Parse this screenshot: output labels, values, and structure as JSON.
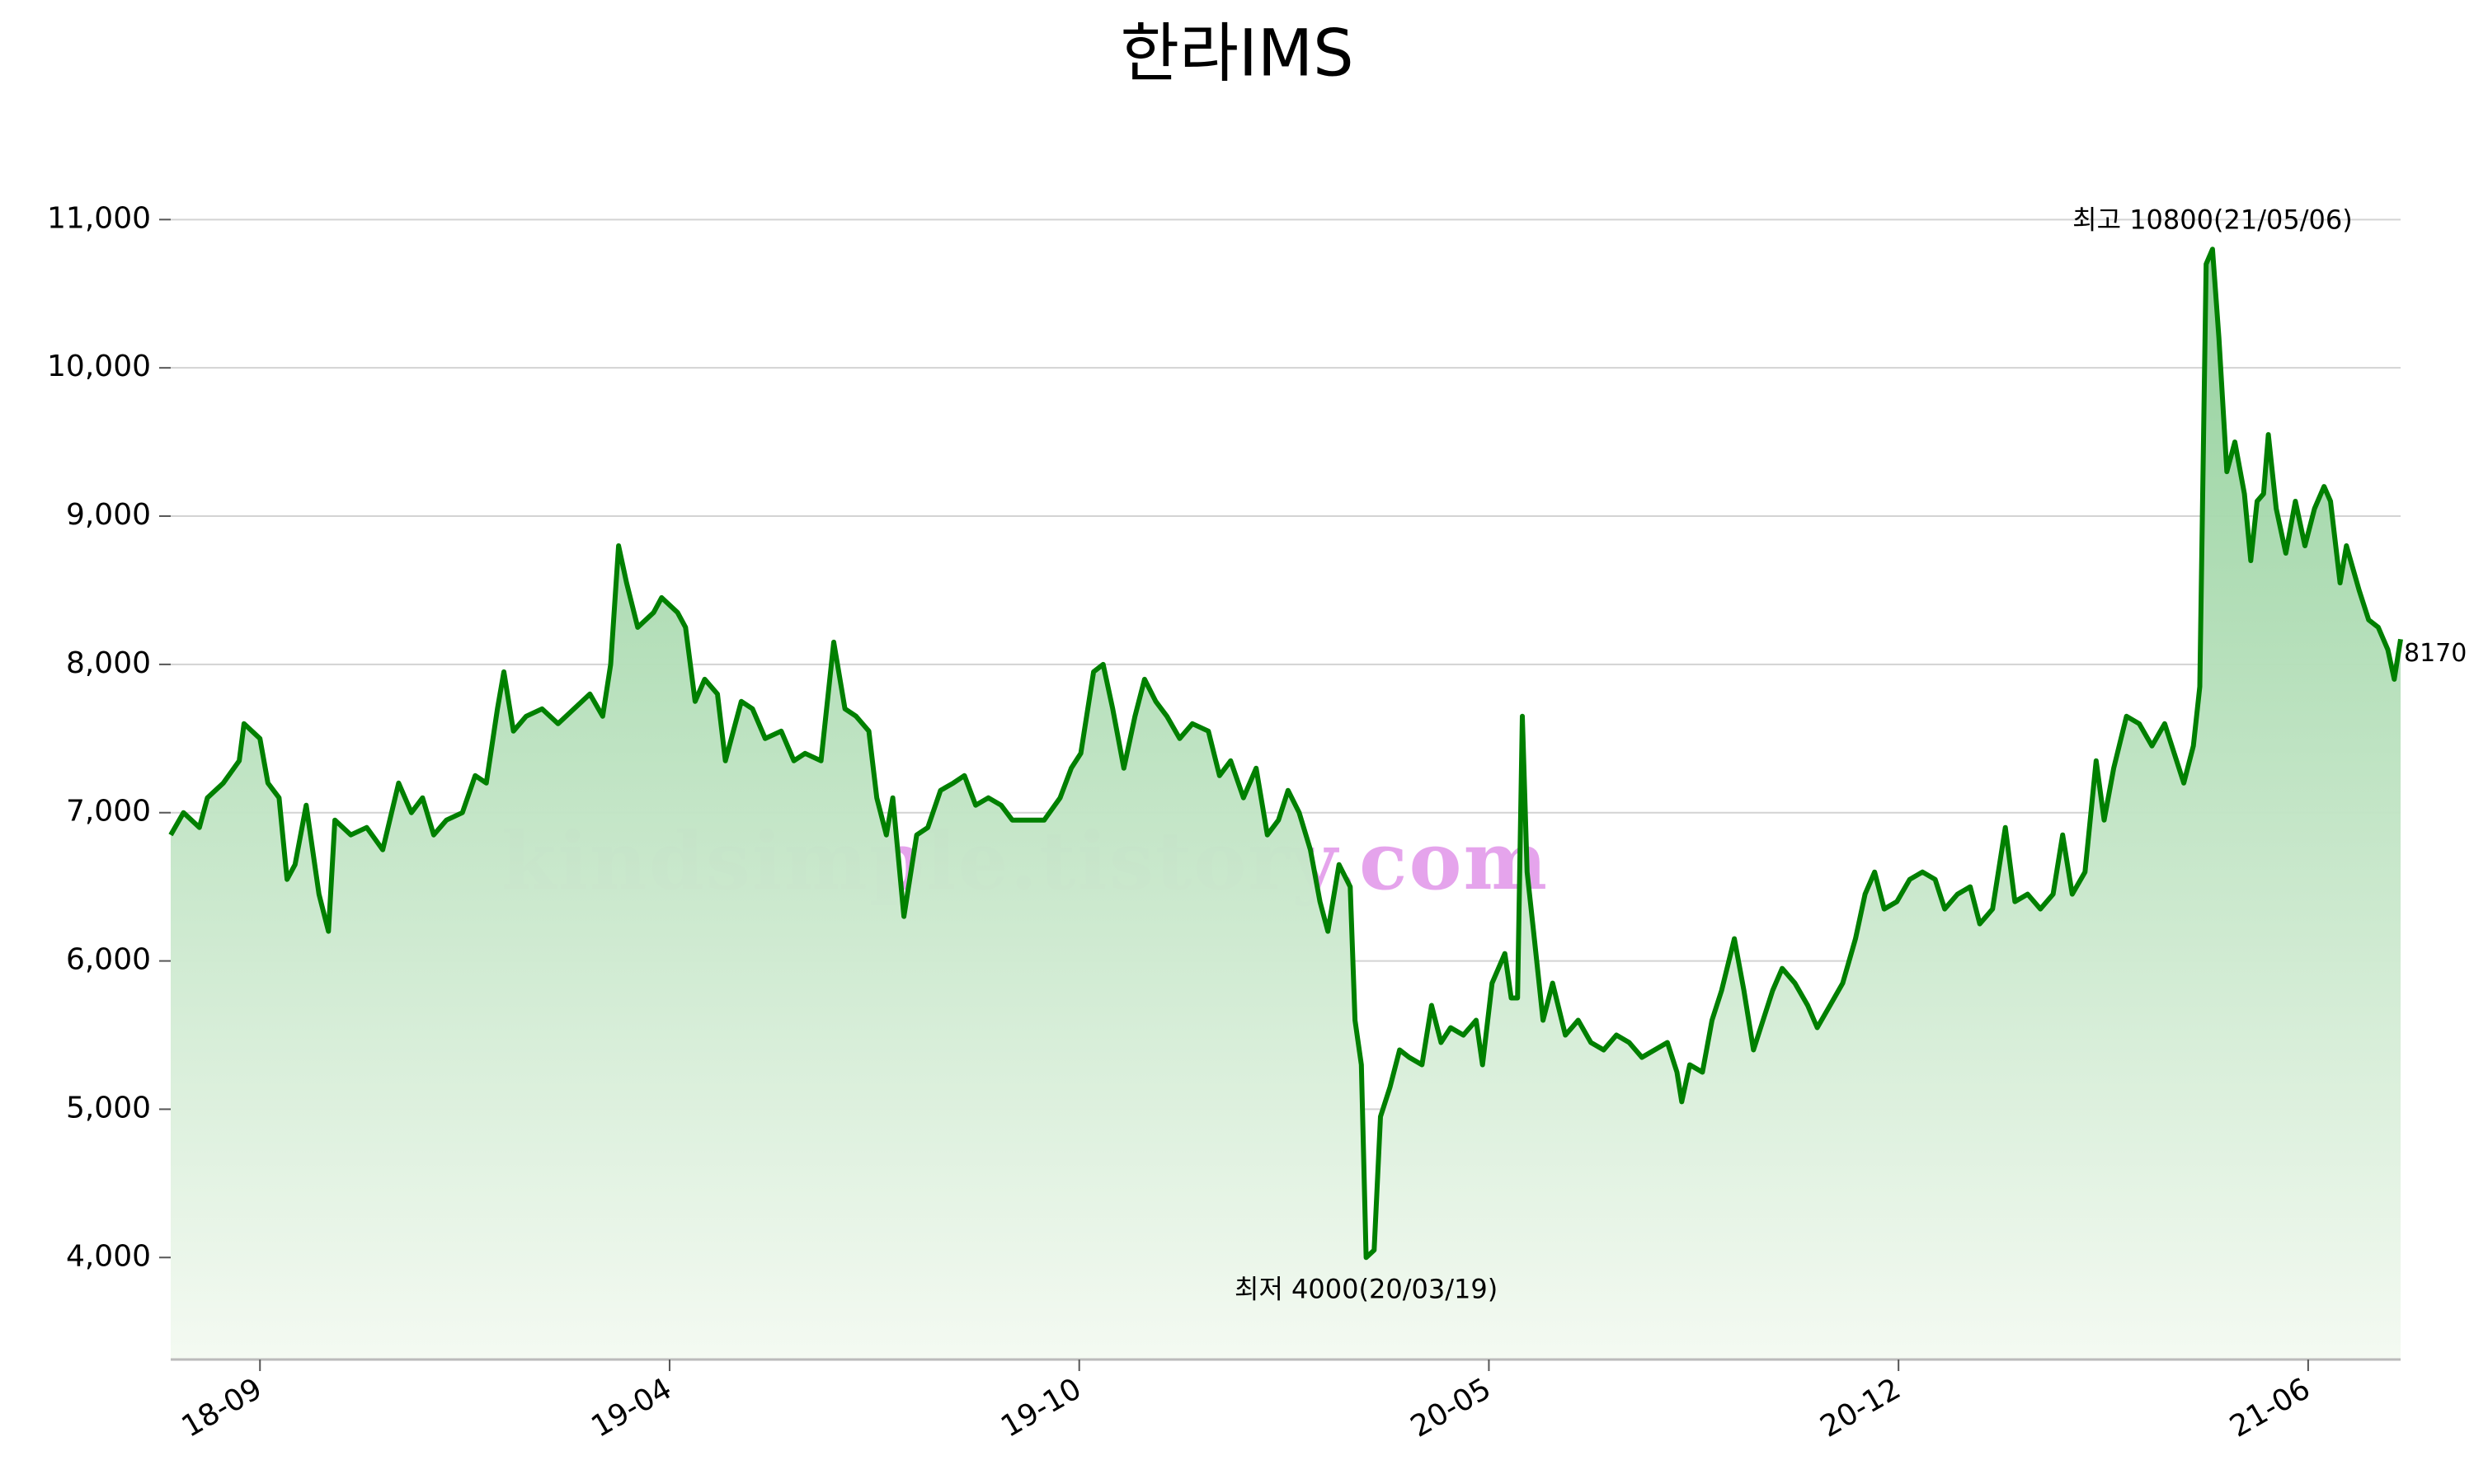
{
  "chart_data": {
    "type": "area-line",
    "title": "한라IMS",
    "watermark": "kindsimple.tistory.com",
    "color": "#008000",
    "x": [
      0,
      8,
      18,
      23,
      33,
      43,
      46,
      56,
      61,
      68,
      73,
      78,
      85,
      93,
      99,
      103,
      113,
      123,
      133,
      143,
      151,
      158,
      165,
      173,
      183,
      191,
      198,
      205,
      209,
      215,
      223,
      233,
      243,
      253,
      263,
      271,
      276,
      281,
      286,
      293,
      303,
      308,
      318,
      323,
      329,
      335,
      343,
      348,
      358,
      365,
      373,
      383,
      391,
      398,
      408,
      416,
      423,
      430,
      438,
      443,
      449,
      453,
      460,
      468,
      475,
      483,
      491,
      498,
      505,
      513,
      521,
      528,
      538,
      548,
      558,
      565,
      571,
      579,
      585,
      591,
      598,
      605,
      611,
      618,
      625,
      633,
      641,
      651,
      658,
      665,
      673,
      681,
      688,
      695,
      701,
      708,
      715,
      721,
      726,
      733,
      740,
      743,
      747,
      750,
      755,
      759,
      765,
      771,
      777,
      785,
      791,
      797,
      803,
      811,
      819,
      823,
      829,
      837,
      841,
      845,
      848,
      851,
      855,
      861,
      867,
      875,
      883,
      891,
      899,
      907,
      915,
      923,
      931,
      939,
      945,
      948,
      953,
      961,
      967,
      973,
      981,
      987,
      993,
      999,
      1005,
      1011,
      1019,
      1027,
      1033,
      1041,
      1049,
      1057,
      1063,
      1069,
      1075,
      1083,
      1091,
      1099,
      1107,
      1113,
      1121,
      1129,
      1135,
      1143,
      1151,
      1157,
      1165,
      1173,
      1181,
      1187,
      1193,
      1201,
      1208,
      1213,
      1219,
      1227,
      1235,
      1243,
      1251,
      1257,
      1263,
      1269,
      1273,
      1277,
      1281,
      1285,
      1290,
      1295,
      1301,
      1305,
      1309,
      1313,
      1316,
      1321,
      1327,
      1333,
      1339,
      1345,
      1351,
      1355,
      1361,
      1365,
      1373,
      1379,
      1385,
      1391,
      1395,
      1399
    ],
    "values": [
      6850,
      7000,
      6900,
      7100,
      7200,
      7350,
      7600,
      7500,
      7200,
      7100,
      6550,
      6650,
      7050,
      6450,
      6200,
      6950,
      6850,
      6900,
      6750,
      7200,
      7000,
      7100,
      6850,
      6950,
      7000,
      7250,
      7200,
      7700,
      7950,
      7550,
      7650,
      7700,
      7600,
      7700,
      7800,
      7650,
      8000,
      8800,
      8550,
      8250,
      8350,
      8450,
      8350,
      8250,
      7750,
      7900,
      7800,
      7350,
      7750,
      7700,
      7500,
      7550,
      7350,
      7400,
      7350,
      8150,
      7700,
      7650,
      7550,
      7100,
      6850,
      7100,
      6300,
      6850,
      6900,
      7150,
      7200,
      7250,
      7050,
      7100,
      7050,
      6950,
      6950,
      6950,
      7100,
      7300,
      7400,
      7950,
      8000,
      7700,
      7300,
      7650,
      7900,
      7750,
      7650,
      7500,
      7600,
      7550,
      7250,
      7350,
      7100,
      7300,
      6850,
      6950,
      7150,
      7000,
      6750,
      6400,
      6200,
      6650,
      6500,
      5600,
      5300,
      4000,
      4050,
      4950,
      5150,
      5400,
      5350,
      5300,
      5700,
      5450,
      5550,
      5500,
      5600,
      5300,
      5850,
      6050,
      5750,
      5750,
      7650,
      6600,
      6200,
      5600,
      5850,
      5500,
      5600,
      5450,
      5400,
      5500,
      5450,
      5350,
      5400,
      5450,
      5250,
      5050,
      5300,
      5250,
      5600,
      5800,
      6150,
      5800,
      5400,
      5600,
      5800,
      5950,
      5850,
      5700,
      5550,
      5700,
      5850,
      6150,
      6450,
      6600,
      6350,
      6400,
      6550,
      6600,
      6550,
      6350,
      6450,
      6500,
      6250,
      6350,
      6900,
      6400,
      6450,
      6350,
      6450,
      6850,
      6450,
      6600,
      7350,
      6950,
      7300,
      7650,
      7600,
      7450,
      7600,
      7400,
      7200,
      7450,
      7850,
      10700,
      10800,
      10200,
      9300,
      9500,
      9150,
      8700,
      9100,
      9150,
      9550,
      9050,
      8750,
      9100,
      8800,
      9050,
      9200,
      9100,
      8550,
      8800,
      8500,
      8300,
      8250,
      8100,
      7900,
      8170
    ],
    "xlim": [
      0,
      1399
    ],
    "xticks": [
      {
        "value": 56,
        "label": "18-09"
      },
      {
        "value": 313,
        "label": "19-04"
      },
      {
        "value": 570,
        "label": "19-10"
      },
      {
        "value": 827,
        "label": "20-05"
      },
      {
        "value": 1084,
        "label": "20-12"
      },
      {
        "value": 1341,
        "label": "21-06"
      }
    ],
    "ylim": [
      3312,
      11480
    ],
    "yticks": [
      {
        "value": 4000,
        "label": "4,000"
      },
      {
        "value": 5000,
        "label": "5,000"
      },
      {
        "value": 6000,
        "label": "6,000"
      },
      {
        "value": 7000,
        "label": "7,000"
      },
      {
        "value": 8000,
        "label": "8,000"
      },
      {
        "value": 9000,
        "label": "9,000"
      },
      {
        "value": 10000,
        "label": "10,000"
      },
      {
        "value": 11000,
        "label": "11,000"
      }
    ],
    "grid": true,
    "annotations": [
      {
        "text": "최고 10800(21/05/06)",
        "x": 1281,
        "y": 10800,
        "color": "#ff0000"
      },
      {
        "text": "최저 4000(20/03/19)",
        "x": 750,
        "y": 4000,
        "color": "#0000ff"
      }
    ]
  }
}
